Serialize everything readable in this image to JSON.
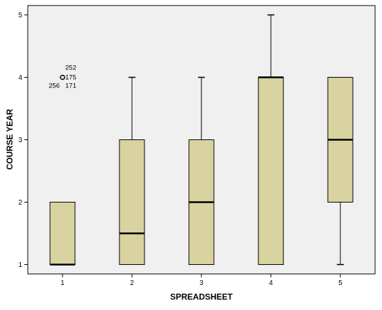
{
  "chart_data": {
    "type": "boxplot",
    "xlabel": "SPREADSHEET",
    "ylabel": "COURSE YEAR",
    "categories": [
      "1",
      "2",
      "3",
      "4",
      "5"
    ],
    "ylim": [
      0.85,
      5.15
    ],
    "yticks": [
      1,
      2,
      3,
      4,
      5
    ],
    "grid": false,
    "legend": "none",
    "colors": {
      "plot_background": "#f0f0f0",
      "box_fill": "#d8d3a0",
      "stroke": "#000000"
    },
    "boxes": [
      {
        "category": "1",
        "whisker_low": 1,
        "q1": 1,
        "median": 1,
        "q3": 2,
        "whisker_high": 2
      },
      {
        "category": "2",
        "whisker_low": 1,
        "q1": 1,
        "median": 1.5,
        "q3": 3,
        "whisker_high": 4
      },
      {
        "category": "3",
        "whisker_low": 1,
        "q1": 1,
        "median": 2,
        "q3": 3,
        "whisker_high": 4
      },
      {
        "category": "4",
        "whisker_low": 1,
        "q1": 1,
        "median": 4,
        "q3": 4,
        "whisker_high": 5
      },
      {
        "category": "5",
        "whisker_low": 1,
        "q1": 2,
        "median": 3,
        "q3": 4,
        "whisker_high": 4
      }
    ],
    "outliers": [
      {
        "category": "1",
        "value": 4,
        "labels": [
          "252",
          "175",
          "256",
          "171"
        ]
      }
    ]
  }
}
